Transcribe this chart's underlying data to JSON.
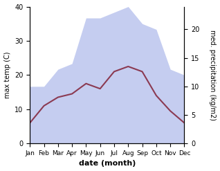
{
  "months": [
    "Jan",
    "Feb",
    "Mar",
    "Apr",
    "May",
    "Jun",
    "Jul",
    "Aug",
    "Sep",
    "Oct",
    "Nov",
    "Dec"
  ],
  "max_temp": [
    6.0,
    11.0,
    13.5,
    14.5,
    17.5,
    16.0,
    21.0,
    22.5,
    21.0,
    14.0,
    9.5,
    6.0
  ],
  "precipitation": [
    10,
    10,
    13,
    14,
    22,
    22,
    23,
    24,
    21,
    20,
    13,
    12
  ],
  "temp_color": "#8B3A52",
  "precip_fill_color": "#c5cdf0",
  "temp_ylim": [
    0,
    40
  ],
  "precip_ylim": [
    0,
    24
  ],
  "precip_right_ticks": [
    0,
    5,
    10,
    15,
    20
  ],
  "temp_left_ticks": [
    0,
    10,
    20,
    30,
    40
  ],
  "xlabel": "date (month)",
  "ylabel_left": "max temp (C)",
  "ylabel_right": "med. precipitation (kg/m2)",
  "background_color": "#ffffff",
  "scale_factor": 1.6667
}
